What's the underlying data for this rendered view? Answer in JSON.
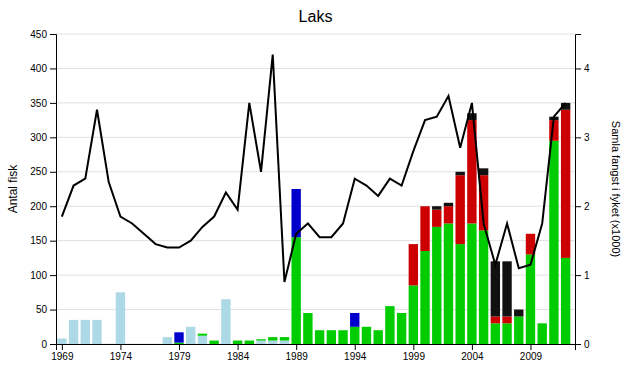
{
  "chart_data": {
    "type": "bar",
    "title": "Laks",
    "ylabel": "Antal fisk",
    "y2label": "Samla fangst i fyket (x1000)",
    "stacked": true,
    "grid": true,
    "x": [
      1969,
      1970,
      1971,
      1972,
      1973,
      1974,
      1975,
      1976,
      1977,
      1978,
      1979,
      1980,
      1981,
      1982,
      1983,
      1984,
      1985,
      1986,
      1987,
      1988,
      1989,
      1990,
      1991,
      1992,
      1993,
      1994,
      1995,
      1996,
      1997,
      1998,
      1999,
      2000,
      2001,
      2002,
      2003,
      2004,
      2005,
      2006,
      2007,
      2008,
      2009,
      2010,
      2011,
      2012
    ],
    "xlim": [
      1968.5,
      2012.8
    ],
    "xticks": [
      1969,
      1974,
      1979,
      1984,
      1989,
      1994,
      1999,
      2004,
      2009
    ],
    "ylim": [
      0,
      450
    ],
    "yticks": [
      0,
      50,
      100,
      150,
      200,
      250,
      300,
      350,
      400,
      450
    ],
    "y2lim": [
      0,
      4.5
    ],
    "y2ticks": [
      0,
      1,
      2,
      3,
      4
    ],
    "series": [
      {
        "color": "#add8e6",
        "values": [
          8,
          35,
          35,
          35,
          0,
          75,
          0,
          0,
          0,
          10,
          0,
          25,
          12,
          0,
          65,
          0,
          0,
          5,
          5,
          5,
          0,
          0,
          0,
          0,
          0,
          0,
          0,
          0,
          0,
          0,
          0,
          0,
          0,
          0,
          0,
          0,
          0,
          0,
          0,
          0,
          0,
          0,
          0,
          0
        ]
      },
      {
        "color": "#00cc00",
        "values": [
          0,
          0,
          0,
          0,
          0,
          0,
          0,
          0,
          0,
          0,
          2,
          0,
          3,
          5,
          0,
          5,
          5,
          2,
          5,
          5,
          155,
          45,
          20,
          20,
          20,
          25,
          25,
          20,
          55,
          45,
          85,
          135,
          170,
          175,
          145,
          175,
          165,
          30,
          30,
          40,
          130,
          30,
          295,
          125
        ]
      },
      {
        "color": "#0000cc",
        "values": [
          0,
          0,
          0,
          0,
          0,
          0,
          0,
          0,
          0,
          0,
          15,
          0,
          0,
          0,
          0,
          0,
          0,
          0,
          0,
          0,
          70,
          0,
          0,
          0,
          0,
          20,
          0,
          0,
          0,
          0,
          0,
          0,
          0,
          0,
          0,
          0,
          0,
          0,
          0,
          0,
          0,
          0,
          0,
          0
        ]
      },
      {
        "color": "#cc0000",
        "values": [
          0,
          0,
          0,
          0,
          0,
          0,
          0,
          0,
          0,
          0,
          0,
          0,
          0,
          0,
          0,
          0,
          0,
          0,
          0,
          0,
          0,
          0,
          0,
          0,
          0,
          0,
          0,
          0,
          0,
          0,
          60,
          65,
          25,
          25,
          100,
          150,
          80,
          10,
          10,
          0,
          30,
          0,
          30,
          215
        ]
      },
      {
        "color": "#111111",
        "values": [
          0,
          0,
          0,
          0,
          0,
          0,
          0,
          0,
          0,
          0,
          0,
          0,
          0,
          0,
          0,
          0,
          0,
          0,
          0,
          0,
          0,
          0,
          0,
          0,
          0,
          0,
          0,
          0,
          0,
          0,
          0,
          0,
          5,
          5,
          5,
          10,
          10,
          80,
          80,
          10,
          0,
          0,
          5,
          10
        ]
      },
      {
        "type": "line",
        "color": "black",
        "values": [
          185,
          230,
          240,
          340,
          235,
          185,
          175,
          160,
          145,
          140,
          140,
          150,
          170,
          185,
          220,
          195,
          350,
          250,
          420,
          90,
          160,
          175,
          155,
          155,
          175,
          240,
          230,
          215,
          240,
          230,
          280,
          325,
          330,
          360,
          285,
          350,
          175,
          115,
          175,
          110,
          115,
          175,
          330,
          350
        ]
      }
    ]
  }
}
